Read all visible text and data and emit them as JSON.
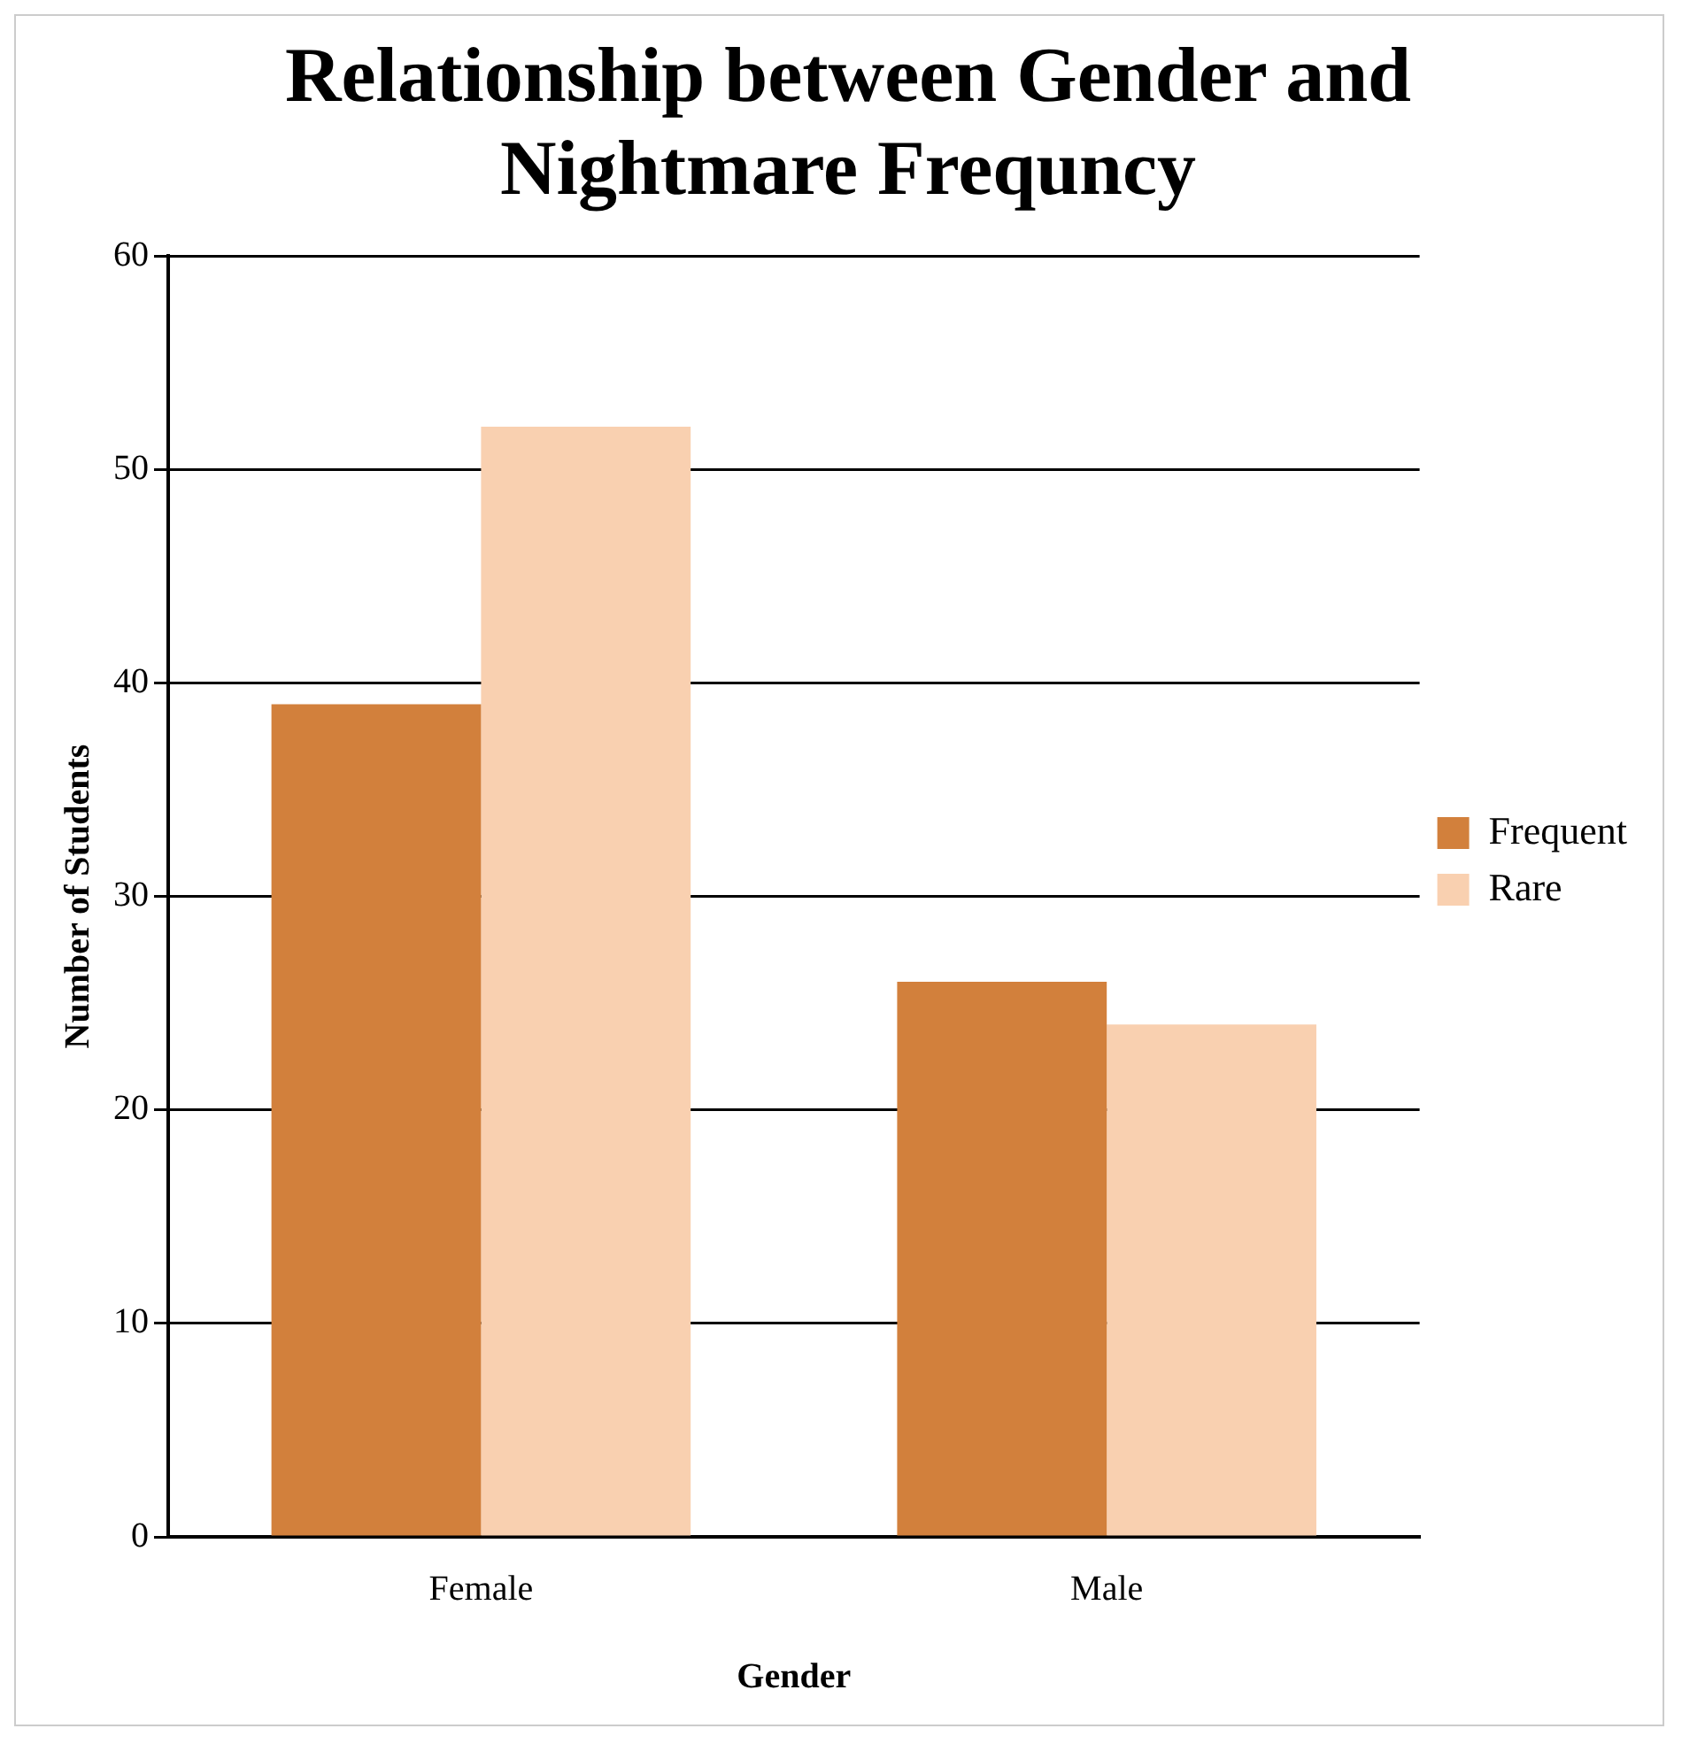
{
  "chart_data": {
    "type": "bar",
    "title": "Relationship between Gender and Nightmare Frequncy",
    "xlabel": "Gender",
    "ylabel": "Number of Students",
    "categories": [
      "Female",
      "Male"
    ],
    "series": [
      {
        "name": "Frequent",
        "color": "#d2803c",
        "values": [
          39,
          26
        ]
      },
      {
        "name": "Rare",
        "color": "#f9d0b0",
        "values": [
          52,
          24
        ]
      }
    ],
    "ylim": [
      0,
      60
    ],
    "yticks": [
      0,
      10,
      20,
      30,
      40,
      50,
      60
    ],
    "grid": "y",
    "legend": "right"
  }
}
